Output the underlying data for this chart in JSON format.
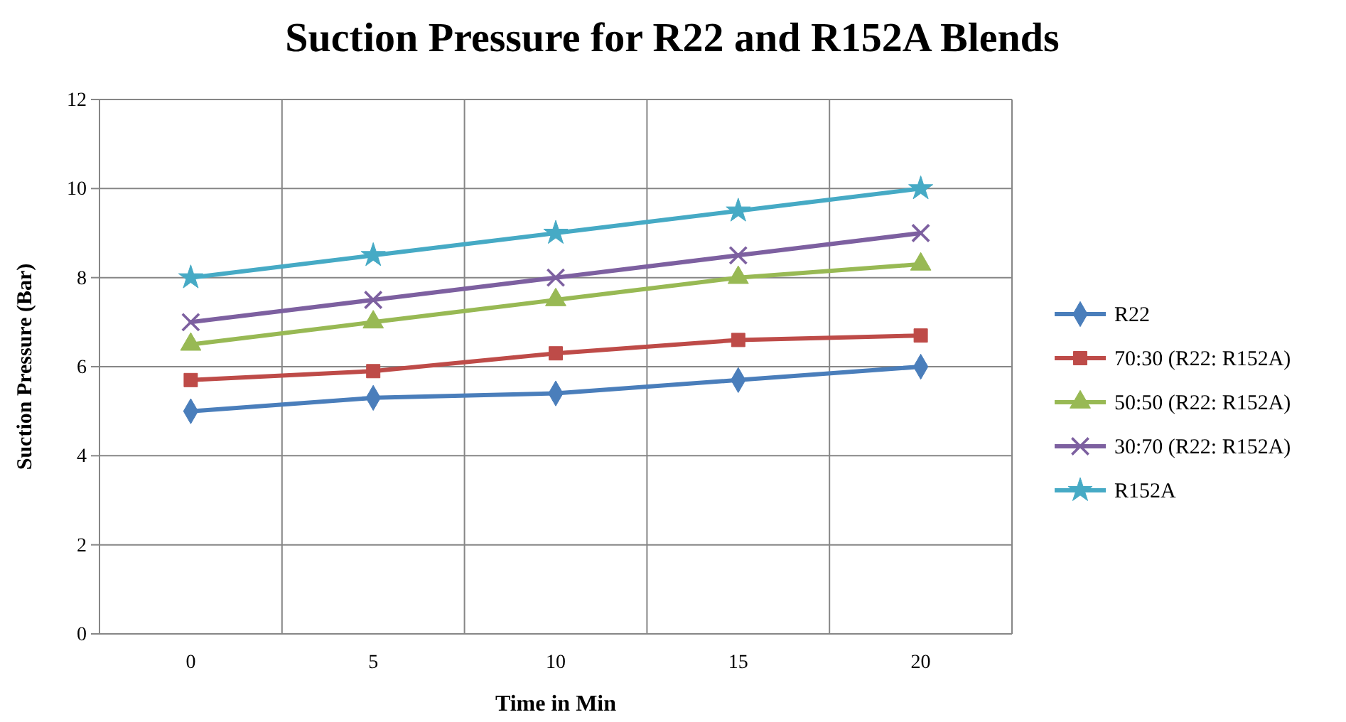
{
  "chart_data": {
    "type": "line",
    "title": "Suction Pressure for R22 and R152A Blends",
    "xlabel": "Time in Min",
    "ylabel": "Suction Pressure (Bar)",
    "categories": [
      "0",
      "5",
      "10",
      "15",
      "20"
    ],
    "series": [
      {
        "name": "R22",
        "color": "#4a7ebb",
        "marker": "diamond",
        "values": [
          5.0,
          5.3,
          5.4,
          5.7,
          6.0
        ]
      },
      {
        "name": "70:30 (R22: R152A)",
        "color": "#be4b48",
        "marker": "square",
        "values": [
          5.7,
          5.9,
          6.3,
          6.6,
          6.7
        ]
      },
      {
        "name": "50:50 (R22: R152A)",
        "color": "#98b954",
        "marker": "triangle",
        "values": [
          6.5,
          7.0,
          7.5,
          8.0,
          8.3
        ]
      },
      {
        "name": "30:70 (R22: R152A)",
        "color": "#7d60a0",
        "marker": "cross",
        "values": [
          7.0,
          7.5,
          8.0,
          8.5,
          9.0
        ]
      },
      {
        "name": "R152A",
        "color": "#46aac5",
        "marker": "star",
        "values": [
          8.0,
          8.5,
          9.0,
          9.5,
          10.0
        ]
      }
    ],
    "ylim": [
      0,
      12
    ],
    "yticks": [
      0,
      2,
      4,
      6,
      8,
      10,
      12
    ],
    "grid": true,
    "legend": "right"
  }
}
